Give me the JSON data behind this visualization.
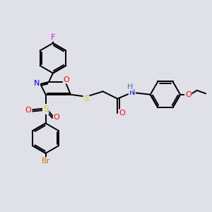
{
  "background_color": "#e0e0e8",
  "bond_color": "#000000",
  "F_color": "#ee00ee",
  "O_color": "#ff0000",
  "N_color": "#0000ff",
  "S_color": "#cccc00",
  "Br_color": "#cc7700",
  "NH_color": "#447788",
  "figsize": [
    3.0,
    3.0
  ],
  "dpi": 100,
  "xlim": [
    0,
    10
  ],
  "ylim": [
    0,
    10
  ]
}
